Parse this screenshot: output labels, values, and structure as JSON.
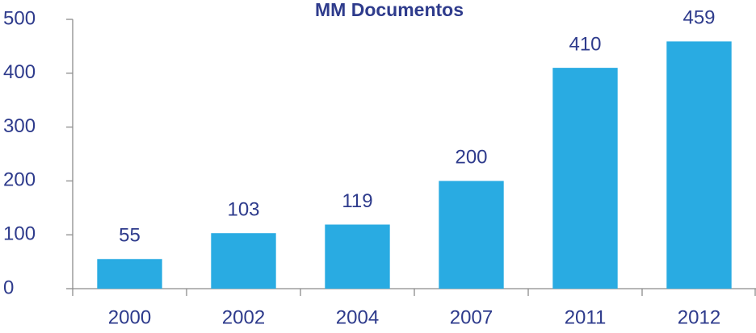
{
  "chart_data": {
    "type": "bar",
    "title": "MM Documentos",
    "categories": [
      "2000",
      "2002",
      "2004",
      "2007",
      "2011",
      "2012"
    ],
    "values": [
      55,
      103,
      119,
      200,
      410,
      459
    ],
    "color": "#29abe2",
    "ylim": [
      0,
      500
    ],
    "yticks": [
      0,
      100,
      200,
      300,
      400,
      500
    ],
    "grid": false
  }
}
